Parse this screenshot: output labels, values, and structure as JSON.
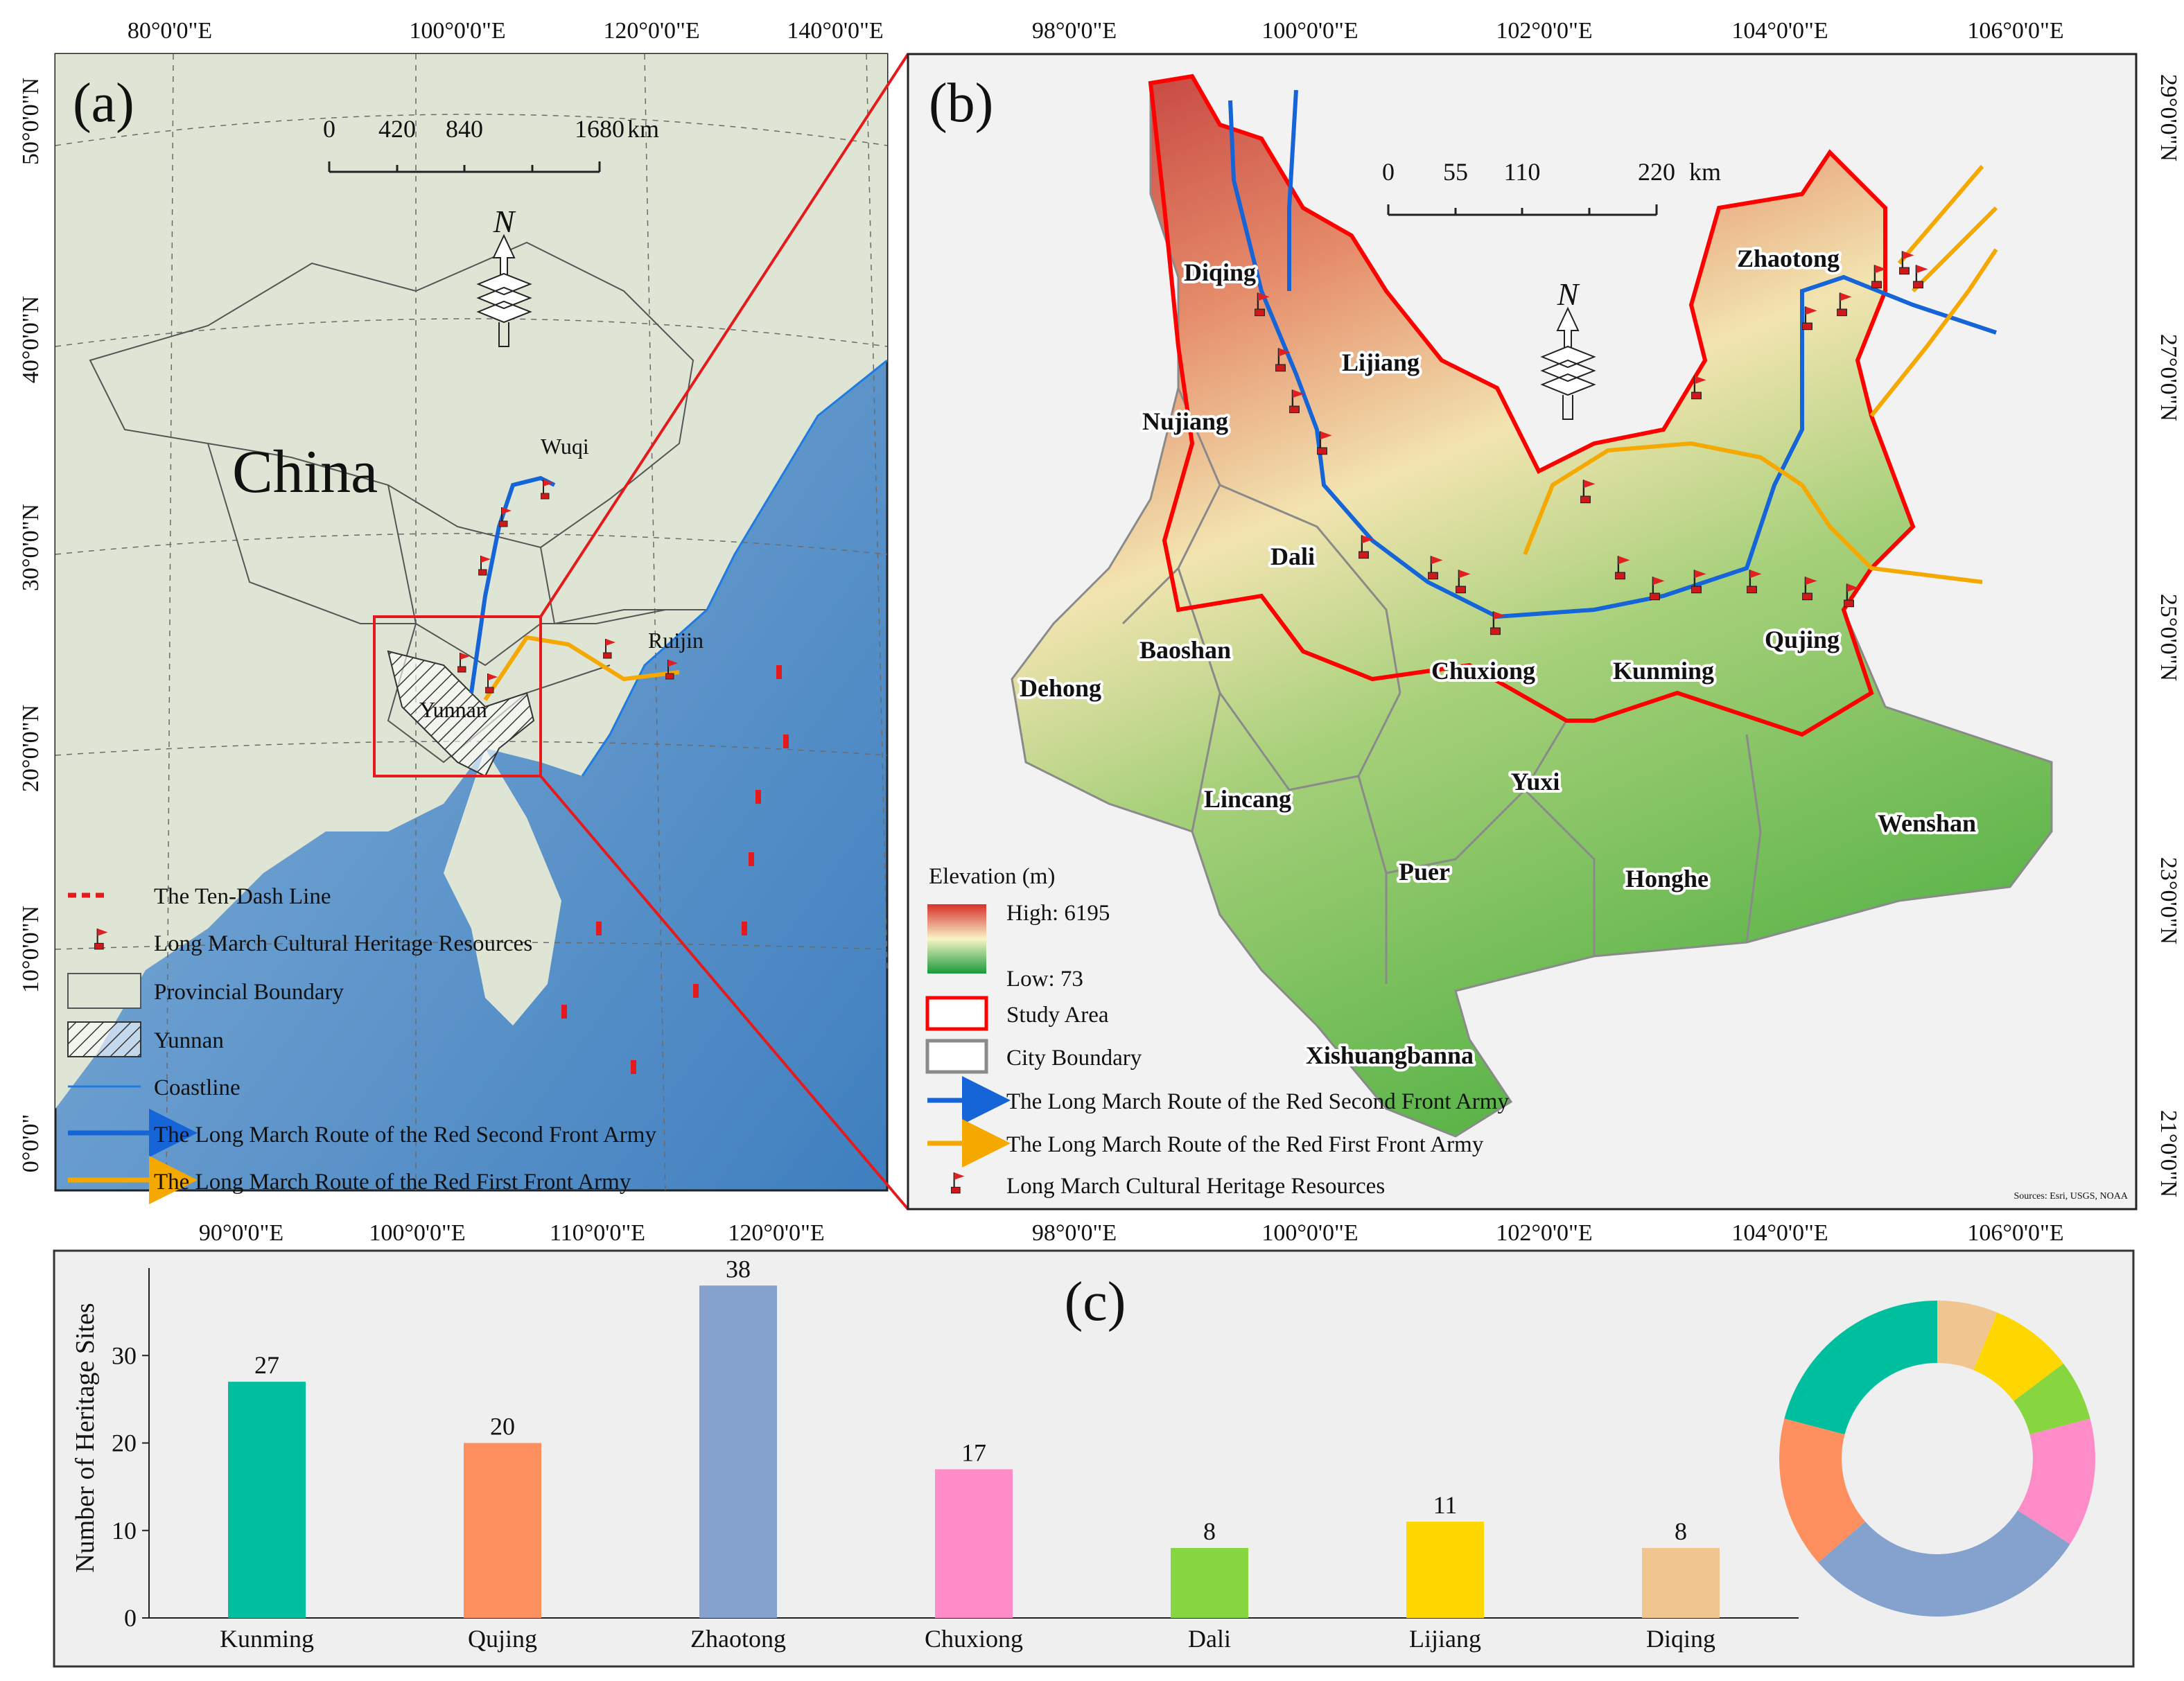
{
  "panel_a": {
    "label": "(a)",
    "country_label": "China",
    "places": [
      "Wuqi",
      "Ruijin",
      "Yunnan"
    ],
    "scale": {
      "ticks": [
        "0",
        "420",
        "840",
        "1680"
      ],
      "unit": "km"
    },
    "north_label": "N",
    "lon_top": [
      "80°0'0\"E",
      "100°0'0\"E",
      "120°0'0\"E",
      "140°0'0\"E"
    ],
    "lon_bottom": [
      "90°0'0\"E",
      "100°0'0\"E",
      "110°0'0\"E",
      "120°0'0\"E"
    ],
    "lat_left": [
      "50°0'0\"N",
      "40°0'0\"N",
      "30°0'0\"N",
      "20°0'0\"N",
      "10°0'0\"N",
      "0°0'0\""
    ],
    "legend": [
      "The Ten-Dash Line",
      "Long March Cultural Heritage Resources",
      "Provincial Boundary",
      "Yunnan",
      "Coastline",
      "The Long March Route of the Red Second Front Army",
      "The Long March Route of the Red First Front Army"
    ],
    "colors": {
      "ocean": "#5b93c7",
      "land": "#dfe5d4",
      "boundary": "#555555",
      "coastline": "#1e7be0",
      "inset_box": "#e41a1c"
    }
  },
  "panel_b": {
    "label": "(b)",
    "regions": [
      "Diqing",
      "Lijiang",
      "Nujiang",
      "Dali",
      "Baoshan",
      "Dehong",
      "Chuxiong",
      "Kunming",
      "Qujing",
      "Zhaotong",
      "Yuxi",
      "Lincang",
      "Puer",
      "Honghe",
      "Wenshan",
      "Xishuangbanna"
    ],
    "scale": {
      "ticks": [
        "0",
        "55",
        "110",
        "220"
      ],
      "unit": "km"
    },
    "north_label": "N",
    "lon_top": [
      "98°0'0\"E",
      "100°0'0\"E",
      "102°0'0\"E",
      "104°0'0\"E",
      "106°0'0\"E"
    ],
    "lon_bottom": [
      "98°0'0\"E",
      "100°0'0\"E",
      "102°0'0\"E",
      "104°0'0\"E",
      "106°0'0\"E"
    ],
    "lat_right": [
      "29°0'0\"N",
      "27°0'0\"N",
      "25°0'0\"N",
      "23°0'0\"N",
      "21°0'0\"N"
    ],
    "legend_title": "Elevation (m)",
    "elevation_high": "High: 6195",
    "elevation_low": "Low: 73",
    "legend": [
      "Study Area",
      "City Boundary",
      "The Long March Route of the Red Second Front Army",
      "The Long March Route of the Red First Front Army",
      "Long March Cultural Heritage Resources"
    ],
    "source_text": "Sources: Esri, USGS, NOAA",
    "colors": {
      "study_area": "#ff0000",
      "city_boundary": "#8a8a8a",
      "route_second": "#1565d8",
      "route_first": "#f5a800",
      "high": "#c2313a",
      "mid": "#f6f1c1",
      "low": "#2e9e3a"
    }
  },
  "panel_c": {
    "label": "(c)",
    "chart_data": {
      "type": "bar",
      "categories": [
        "Kunming",
        "Qujing",
        "Zhaotong",
        "Chuxiong",
        "Dali",
        "Lijiang",
        "Diqing"
      ],
      "values": [
        27,
        20,
        38,
        17,
        8,
        11,
        8
      ],
      "ylabel": "Number of Heritage Sites",
      "yticks": [
        "0",
        "10",
        "20",
        "30"
      ],
      "ylim": [
        0,
        40
      ],
      "colors": [
        "#00bf9f",
        "#fe905f",
        "#85a2cf",
        "#fd8cc9",
        "#87d53f",
        "#ffd700",
        "#f0c58f"
      ],
      "donut": {
        "type": "pie",
        "values": [
          27,
          20,
          38,
          17,
          8,
          11,
          8
        ],
        "order_clockwise_from_top": [
          "Diqing",
          "Lijiang",
          "Dali",
          "Chuxiong",
          "Zhaotong",
          "Qujing",
          "Kunming"
        ]
      }
    }
  }
}
